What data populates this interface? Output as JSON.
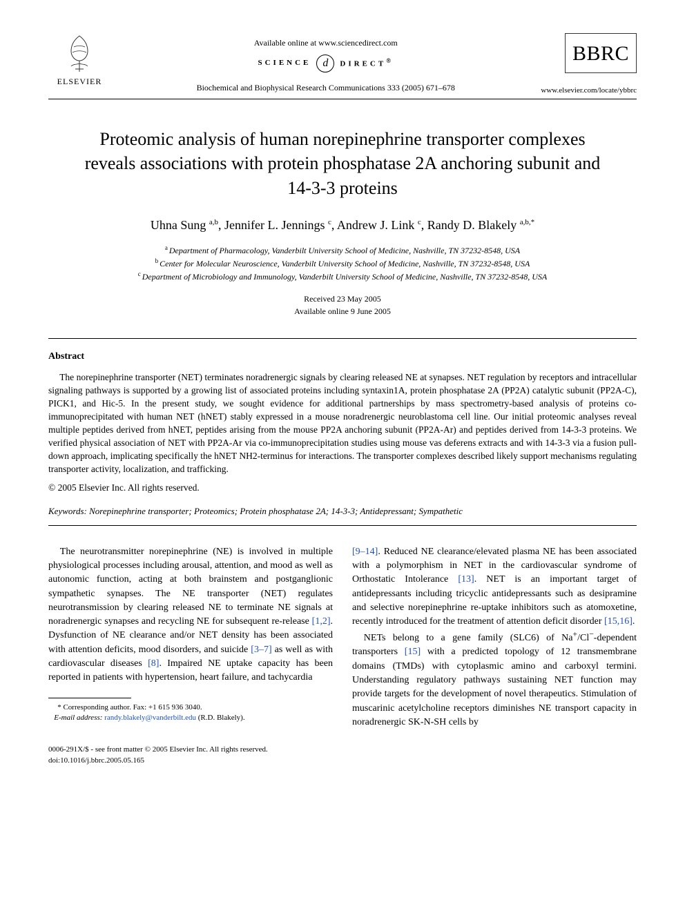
{
  "header": {
    "elsevier_label": "ELSEVIER",
    "available_line": "Available online at www.sciencedirect.com",
    "sd_left": "SCIENCE",
    "sd_mid_glyph": "d",
    "sd_right": "DIRECT",
    "sd_reg": "®",
    "journal_ref": "Biochemical and Biophysical Research Communications 333 (2005) 671–678",
    "bbrc_logo": "BBRC",
    "bbrc_url": "www.elsevier.com/locate/ybbrc"
  },
  "title": "Proteomic analysis of human norepinephrine transporter complexes reveals associations with protein phosphatase 2A anchoring subunit and 14-3-3 proteins",
  "authors_html": "Uhna Sung <sup>a,b</sup>, Jennifer L. Jennings <sup>c</sup>, Andrew J. Link <sup>c</sup>, Randy D. Blakely <sup>a,b,*</sup>",
  "affiliations": {
    "a": "Department of Pharmacology, Vanderbilt University School of Medicine, Nashville, TN 37232-8548, USA",
    "b": "Center for Molecular Neuroscience, Vanderbilt University School of Medicine, Nashville, TN 37232-8548, USA",
    "c": "Department of Microbiology and Immunology, Vanderbilt University School of Medicine, Nashville, TN 37232-8548, USA"
  },
  "dates": {
    "received": "Received 23 May 2005",
    "online": "Available online 9 June 2005"
  },
  "abstract_heading": "Abstract",
  "abstract_text": "The norepinephrine transporter (NET) terminates noradrenergic signals by clearing released NE at synapses. NET regulation by receptors and intracellular signaling pathways is supported by a growing list of associated proteins including syntaxin1A, protein phosphatase 2A (PP2A) catalytic subunit (PP2A-C), PICK1, and Hic-5. In the present study, we sought evidence for additional partnerships by mass spectrometry-based analysis of proteins co-immunoprecipitated with human NET (hNET) stably expressed in a mouse noradrenergic neuroblastoma cell line. Our initial proteomic analyses reveal multiple peptides derived from hNET, peptides arising from the mouse PP2A anchoring subunit (PP2A-Ar) and peptides derived from 14-3-3 proteins. We verified physical association of NET with PP2A-Ar via co-immunoprecipitation studies using mouse vas deferens extracts and with 14-3-3 via a fusion pull-down approach, implicating specifically the hNET NH2-terminus for interactions. The transporter complexes described likely support mechanisms regulating transporter activity, localization, and trafficking.",
  "copyright_line": "© 2005 Elsevier Inc. All rights reserved.",
  "keywords_label": "Keywords:",
  "keywords_text": " Norepinephrine transporter; Proteomics; Protein phosphatase 2A; 14-3-3; Antidepressant; Sympathetic",
  "body": {
    "left_para": "The neurotransmitter norepinephrine (NE) is involved in multiple physiological processes including arousal, attention, and mood as well as autonomic function, acting at both brainstem and postganglionic sympathetic synapses. The NE transporter (NET) regulates neurotransmission by clearing released NE to terminate NE signals at noradrenergic synapses and recycling NE for subsequent re-release ",
    "ref12": "[1,2]",
    "left_para_2": ". Dysfunction of NE clearance and/or NET density has been associated with attention deficits, mood disorders, and suicide ",
    "ref37": "[3–7]",
    "left_para_3": " as well as with cardiovascular diseases ",
    "ref8": "[8]",
    "left_para_4": ". Impaired NE uptake capacity has been reported in patients with hypertension, heart failure, and tachycardia",
    "right_para_1a": "",
    "ref914": "[9–14]",
    "right_para_1b": ". Reduced NE clearance/elevated plasma NE has been associated with a polymorphism in NET in the cardiovascular syndrome of Orthostatic Intolerance ",
    "ref13": "[13]",
    "right_para_1c": ". NET is an important target of antidepressants including tricyclic antidepressants such as desipramine and selective norepinephrine re-uptake inhibitors such as atomoxetine, recently introduced for the treatment of attention deficit disorder ",
    "ref1516": "[15,16]",
    "right_para_1d": ".",
    "right_para_2a": "NETs belong to a gene family (SLC6) of Na+/Cl−-dependent transporters ",
    "ref15": "[15]",
    "right_para_2b": " with a predicted topology of 12 transmembrane domains (TMDs) with cytoplasmic amino and carboxyl termini. Understanding regulatory pathways sustaining NET function may provide targets for the development of novel therapeutics. Stimulation of muscarinic acetylcholine receptors diminishes NE transport capacity in noradrenergic SK-N-SH cells by"
  },
  "footnote": {
    "corr_label": "* Corresponding author. Fax: +1 615 936 3040.",
    "email_label": "E-mail address:",
    "email": "randy.blakely@vanderbilt.edu",
    "email_tail": " (R.D. Blakely)."
  },
  "footer": {
    "left": "0006-291X/$ - see front matter © 2005 Elsevier Inc. All rights reserved.",
    "doi": "doi:10.1016/j.bbrc.2005.05.165"
  },
  "colors": {
    "link": "#2050c0",
    "text": "#000000",
    "background": "#ffffff",
    "rule": "#000000"
  }
}
